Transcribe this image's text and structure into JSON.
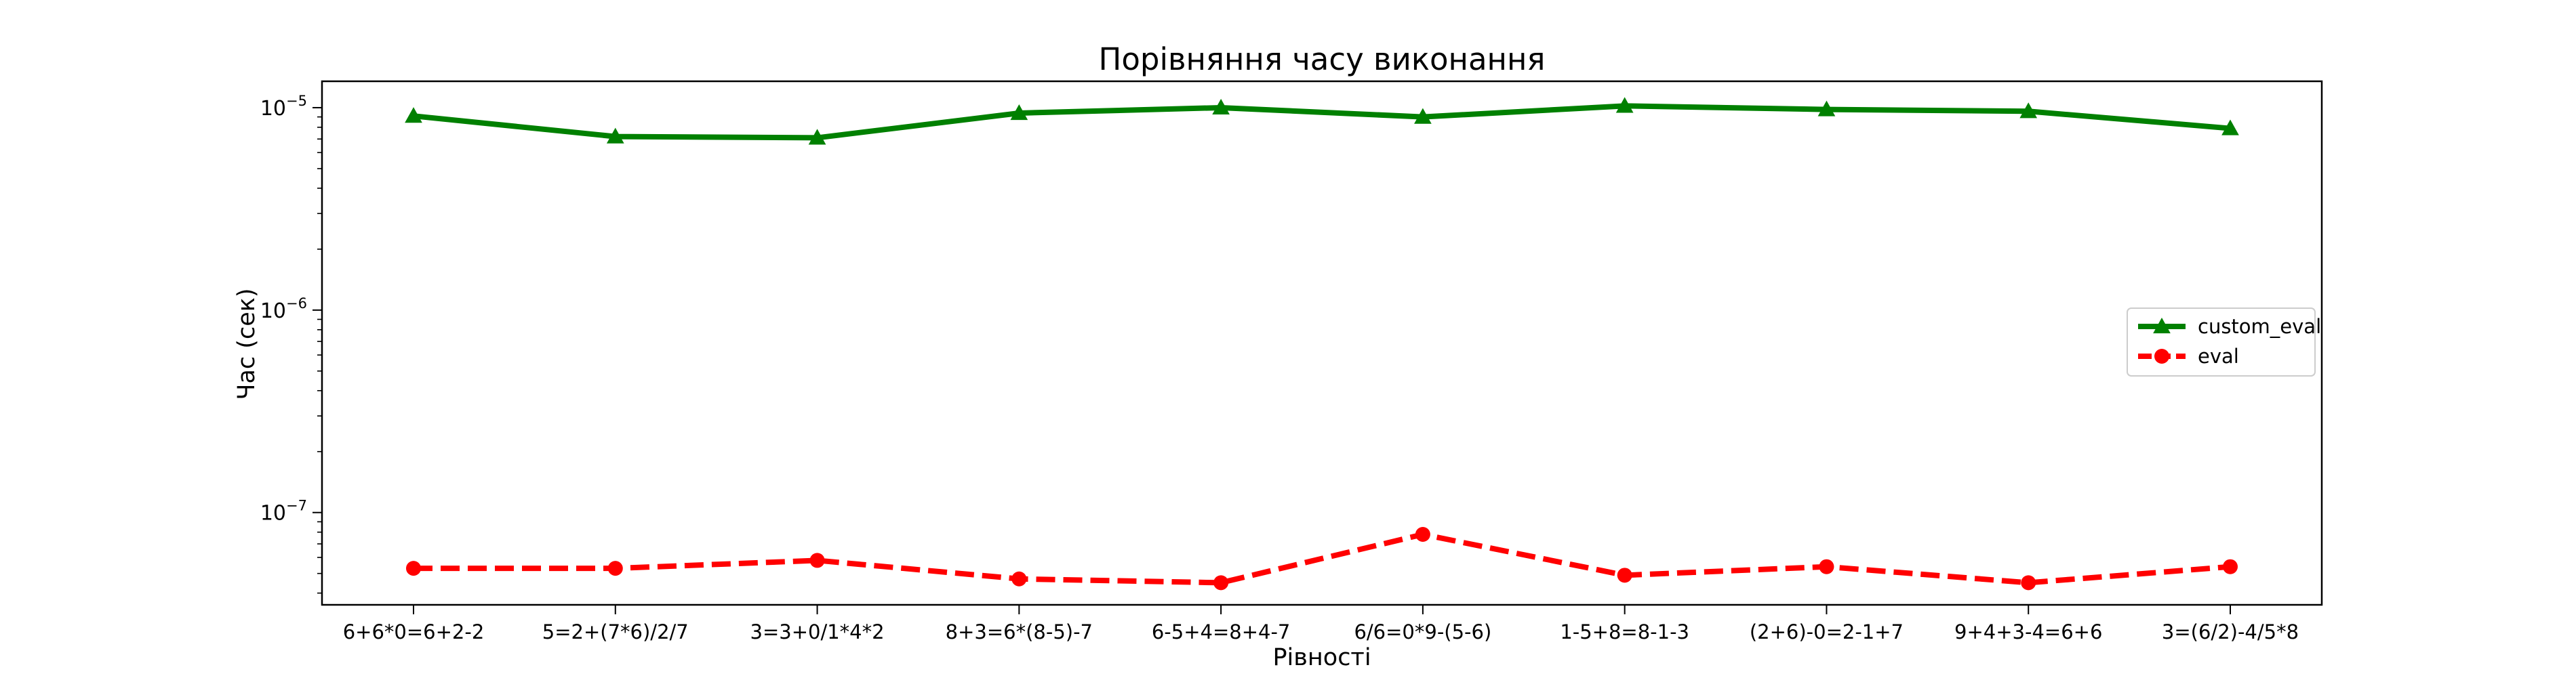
{
  "chart_data": {
    "type": "line",
    "title": "Порівняння часу виконання",
    "xlabel": "Рівності",
    "ylabel": "Час (сек)",
    "yscale": "log",
    "ylim": [
      3.5e-08,
      1.35e-05
    ],
    "grid": false,
    "legend_position": "center-right",
    "categories": [
      "6+6*0=6+2-2",
      "5=2+(7*6)/2/7",
      "3=3+0/1*4*2",
      "8+3=6*(8-5)-7",
      "6-5+4=8+4-7",
      "6/6=0*9-(5-6)",
      "1-5+8=8-1-3",
      "(2+6)-0=2-1+7",
      "9+4+3-4=6+6",
      "3=(6/2)-4/5*8"
    ],
    "y_ticks": [
      {
        "value": 1e-07,
        "base": "10",
        "exp": "−7"
      },
      {
        "value": 1e-06,
        "base": "10",
        "exp": "−6"
      },
      {
        "value": 1e-05,
        "base": "10",
        "exp": "−5"
      }
    ],
    "series": [
      {
        "name": "custom_eval",
        "color": "#008000",
        "line_style": "solid",
        "marker": "triangle",
        "values": [
          9.1e-06,
          7.2e-06,
          7.1e-06,
          9.4e-06,
          1e-05,
          9e-06,
          1.02e-05,
          9.8e-06,
          9.6e-06,
          7.9e-06
        ]
      },
      {
        "name": "eval",
        "color": "#ff0000",
        "line_style": "dashed",
        "marker": "circle",
        "values": [
          5.3e-08,
          5.3e-08,
          5.8e-08,
          4.7e-08,
          4.5e-08,
          7.8e-08,
          4.9e-08,
          5.4e-08,
          4.5e-08,
          5.4e-08
        ]
      }
    ]
  }
}
